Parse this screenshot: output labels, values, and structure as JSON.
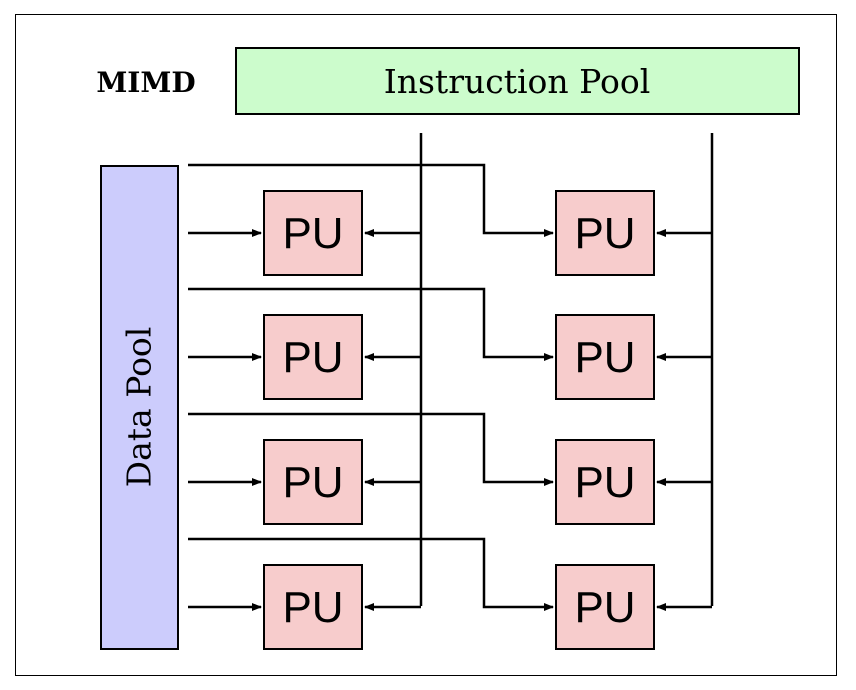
{
  "diagram": {
    "type_label": "MIMD",
    "instruction_pool": {
      "label": "Instruction Pool",
      "color": "#ccfccc"
    },
    "data_pool": {
      "label": "Data Pool",
      "color": "#ccccfc"
    },
    "processing_unit": {
      "label": "PU",
      "color": "#f7cccc"
    },
    "pu_grid": {
      "rows": 4,
      "columns": 2
    },
    "line_color": "#000000"
  }
}
